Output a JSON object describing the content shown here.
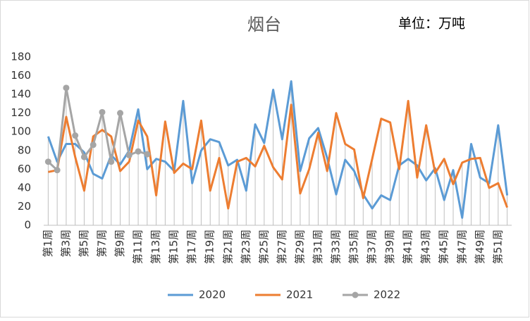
{
  "chart_data": {
    "type": "line",
    "title": "烟台",
    "annotation": "单位：万吨",
    "categories": [
      "第1周",
      null,
      "第3周",
      null,
      "第5周",
      null,
      "第7周",
      null,
      "第9周",
      null,
      "第11周",
      null,
      "第13周",
      null,
      "第15周",
      null,
      "第17周",
      null,
      "第19周",
      null,
      "第21周",
      null,
      "第23周",
      null,
      "第25周",
      null,
      "第27周",
      null,
      "第29周",
      null,
      "第31周",
      null,
      "第33周",
      null,
      "第35周",
      null,
      "第37周",
      null,
      "第39周",
      null,
      "第41周",
      null,
      "第43周",
      null,
      "第45周",
      null,
      "第47周",
      null,
      "第49周",
      null,
      "第51周",
      null
    ],
    "series": [
      {
        "name": "2020",
        "color": "#5b9bd5",
        "marker": false,
        "values": [
          95,
          68,
          87,
          87,
          78,
          55,
          50,
          75,
          65,
          80,
          124,
          60,
          71,
          68,
          58,
          133,
          45,
          80,
          92,
          89,
          64,
          70,
          37,
          108,
          88,
          145,
          92,
          154,
          58,
          93,
          104,
          72,
          33,
          70,
          58,
          33,
          18,
          32,
          27,
          64,
          71,
          64,
          48,
          61,
          27,
          59,
          8,
          87,
          51,
          45,
          107,
          32
        ]
      },
      {
        "name": "2021",
        "color": "#ed7d31",
        "marker": false,
        "values": [
          57,
          59,
          116,
          73,
          37,
          95,
          102,
          95,
          58,
          68,
          112,
          95,
          32,
          111,
          56,
          66,
          60,
          112,
          37,
          72,
          18,
          68,
          72,
          63,
          85,
          62,
          49,
          129,
          34,
          60,
          99,
          58,
          120,
          87,
          81,
          29,
          71,
          114,
          110,
          60,
          133,
          51,
          107,
          56,
          71,
          44,
          67,
          71,
          72,
          40,
          45,
          19
        ]
      },
      {
        "name": "2022",
        "color": "#a5a5a5",
        "marker": true,
        "values": [
          68,
          59,
          147,
          96,
          73,
          86,
          121,
          68,
          120,
          75,
          79,
          76,
          null,
          null,
          null,
          null,
          null,
          null,
          null,
          null,
          null,
          null,
          null,
          null,
          null,
          null,
          null,
          null,
          null,
          null,
          null,
          null,
          null,
          null,
          null,
          null,
          null,
          null,
          null,
          null,
          null,
          null,
          null,
          null,
          null,
          null,
          null,
          null,
          null,
          null,
          null,
          null
        ]
      }
    ],
    "ylim": [
      0,
      180
    ],
    "yticks": [
      0,
      20,
      40,
      60,
      80,
      100,
      120,
      140,
      160,
      180
    ],
    "grid": false,
    "drop_lines": true,
    "legend": "bottom"
  }
}
